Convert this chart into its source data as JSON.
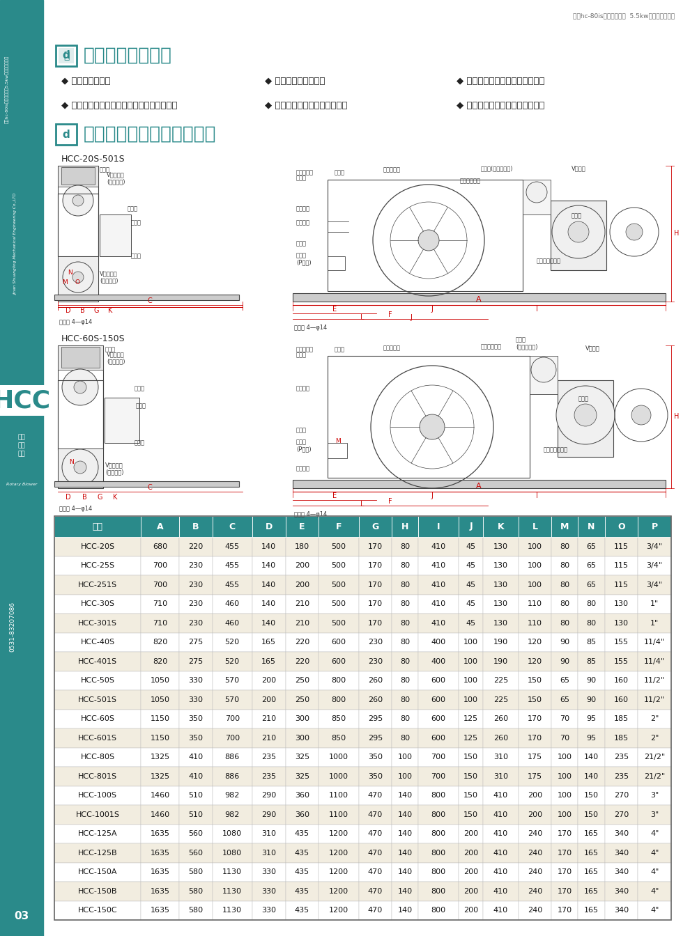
{
  "page_bg": "#ffffff",
  "sidebar_color": "#2a8a8a",
  "section1_title": "回转式鼓风机用途",
  "section1_title_color": "#2a8a8a",
  "section1_items": [
    "◆ 水处理鼓风曝气",
    "◆ 医院、宾馆、船舶、实验室的污水搅拌曝气",
    "◆ 印刷行业的真空送纸",
    "◆ 电镀槽、工业废水的搅拌曝气",
    "◆ 塑焊、食品包装吹风的气源供应",
    "◆ 燃烧器的喷雾、玻璃工业及其它"
  ],
  "section2_title": "回转鼓风机外型尺寸与数据",
  "section2_title_color": "#2a8a8a",
  "diagram1_label": "HCC-20S-501S",
  "diagram2_label": "HCC-60S-150S",
  "sidebar_vertical_text": "Jinan Shuangling Mechanical Engineering Co.,LTD",
  "sidebar_chinese_top": "四川hc-80is迴轉式鼓\n風機5.5kw迴轉式曝\n氣風機",
  "hcc_text": "HCC",
  "rotary_blower_cn": "回转\n式鼓\n风机",
  "rotary_blower_en": "Rotary Blower",
  "phone": "0531-83207086",
  "table_header": [
    "型号",
    "A",
    "B",
    "C",
    "D",
    "E",
    "F",
    "G",
    "H",
    "I",
    "J",
    "K",
    "L",
    "M",
    "N",
    "O",
    "P"
  ],
  "table_header_bg": "#2a8a8a",
  "table_header_color": "#ffffff",
  "table_row_bg_odd": "#f2ede0",
  "table_row_bg_even": "#ffffff",
  "table_data": [
    [
      "HCC-20S",
      680,
      220,
      455,
      140,
      180,
      500,
      170,
      80,
      410,
      45,
      130,
      100,
      80,
      65,
      115,
      "3/4\""
    ],
    [
      "HCC-25S",
      700,
      230,
      455,
      140,
      200,
      500,
      170,
      80,
      410,
      45,
      130,
      100,
      80,
      65,
      115,
      "3/4\""
    ],
    [
      "HCC-251S",
      700,
      230,
      455,
      140,
      200,
      500,
      170,
      80,
      410,
      45,
      130,
      100,
      80,
      65,
      115,
      "3/4\""
    ],
    [
      "HCC-30S",
      710,
      230,
      460,
      140,
      210,
      500,
      170,
      80,
      410,
      45,
      130,
      110,
      80,
      80,
      130,
      "1\""
    ],
    [
      "HCC-301S",
      710,
      230,
      460,
      140,
      210,
      500,
      170,
      80,
      410,
      45,
      130,
      110,
      80,
      80,
      130,
      "1\""
    ],
    [
      "HCC-40S",
      820,
      275,
      520,
      165,
      220,
      600,
      230,
      80,
      400,
      100,
      190,
      120,
      90,
      85,
      155,
      "11/4\""
    ],
    [
      "HCC-401S",
      820,
      275,
      520,
      165,
      220,
      600,
      230,
      80,
      400,
      100,
      190,
      120,
      90,
      85,
      155,
      "11/4\""
    ],
    [
      "HCC-50S",
      1050,
      330,
      570,
      200,
      250,
      800,
      260,
      80,
      600,
      100,
      225,
      150,
      65,
      90,
      160,
      "11/2\""
    ],
    [
      "HCC-501S",
      1050,
      330,
      570,
      200,
      250,
      800,
      260,
      80,
      600,
      100,
      225,
      150,
      65,
      90,
      160,
      "11/2\""
    ],
    [
      "HCC-60S",
      1150,
      350,
      700,
      210,
      300,
      850,
      295,
      80,
      600,
      125,
      260,
      170,
      70,
      95,
      185,
      "2\""
    ],
    [
      "HCC-601S",
      1150,
      350,
      700,
      210,
      300,
      850,
      295,
      80,
      600,
      125,
      260,
      170,
      70,
      95,
      185,
      "2\""
    ],
    [
      "HCC-80S",
      1325,
      410,
      886,
      235,
      325,
      1000,
      350,
      100,
      700,
      150,
      310,
      175,
      100,
      140,
      235,
      "21/2\""
    ],
    [
      "HCC-801S",
      1325,
      410,
      886,
      235,
      325,
      1000,
      350,
      100,
      700,
      150,
      310,
      175,
      100,
      140,
      235,
      "21/2\""
    ],
    [
      "HCC-100S",
      1460,
      510,
      982,
      290,
      360,
      1100,
      470,
      140,
      800,
      150,
      410,
      200,
      100,
      150,
      270,
      "3\""
    ],
    [
      "HCC-1001S",
      1460,
      510,
      982,
      290,
      360,
      1100,
      470,
      140,
      800,
      150,
      410,
      200,
      100,
      150,
      270,
      "3\""
    ],
    [
      "HCC-125A",
      1635,
      560,
      1080,
      310,
      435,
      1200,
      470,
      140,
      800,
      200,
      410,
      240,
      170,
      165,
      340,
      "4\""
    ],
    [
      "HCC-125B",
      1635,
      560,
      1080,
      310,
      435,
      1200,
      470,
      140,
      800,
      200,
      410,
      240,
      170,
      165,
      340,
      "4\""
    ],
    [
      "HCC-150A",
      1635,
      580,
      1130,
      330,
      435,
      1200,
      470,
      140,
      800,
      200,
      410,
      240,
      170,
      165,
      340,
      "4\""
    ],
    [
      "HCC-150B",
      1635,
      580,
      1130,
      330,
      435,
      1200,
      470,
      140,
      800,
      200,
      410,
      240,
      170,
      165,
      340,
      "4\""
    ],
    [
      "HCC-150C",
      1635,
      580,
      1130,
      330,
      435,
      1200,
      470,
      140,
      800,
      200,
      410,
      240,
      170,
      165,
      340,
      "4\""
    ]
  ],
  "page_number": "03",
  "dim_color": "#cc0000",
  "line_color": "#444444",
  "label_fontsize": 6.0,
  "top_right_text": "四川hc-80is迴轉式鼓風機  5.5kw迴轉式曙氣風機"
}
